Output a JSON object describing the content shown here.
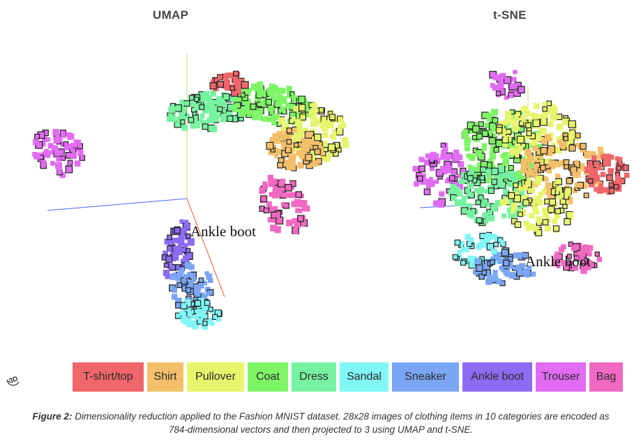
{
  "figure": {
    "umap_title": "UMAP",
    "tsne_title": "t-SNE",
    "umap_hover_label": "Ankle boot",
    "tsne_hover_label": "Ankle boot",
    "view_toggle_label": "3D",
    "caption_label": "Figure 2:",
    "caption_text": " Dimensionality reduction applied to the Fashion MNIST dataset. 28x28 images of clothing items in 10 categories are encoded as 784-dimensional vectors and then projected to 3 using UMAP and t-SNE."
  },
  "legend": [
    {
      "label": "T-shirt/top",
      "color": "#f0666b"
    },
    {
      "label": "Shirt",
      "color": "#f4bf6a"
    },
    {
      "label": "Pullover",
      "color": "#e6f56b"
    },
    {
      "label": "Coat",
      "color": "#7ef567"
    },
    {
      "label": "Dress",
      "color": "#76f3a0"
    },
    {
      "label": "Sandal",
      "color": "#80f6f6"
    },
    {
      "label": "Sneaker",
      "color": "#7ba6f5"
    },
    {
      "label": "Ankle boot",
      "color": "#8d6bf2"
    },
    {
      "label": "Trouser",
      "color": "#e16bf2"
    },
    {
      "label": "Bag",
      "color": "#f169c3"
    }
  ]
}
